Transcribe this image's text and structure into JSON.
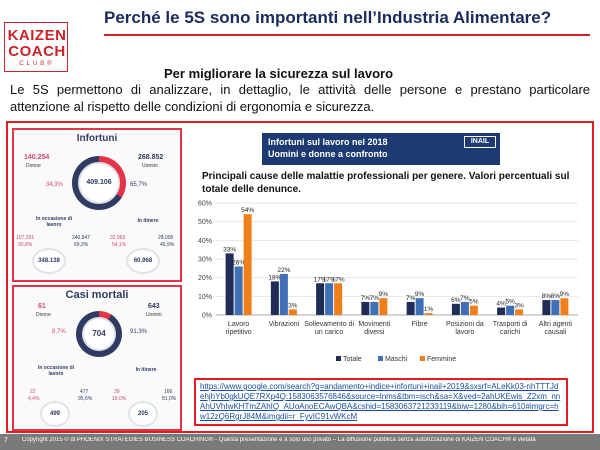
{
  "logo": {
    "line1": "KAIZEN",
    "line2": "COACH",
    "line3": "CLUB®"
  },
  "title": "Perché le 5S sono importanti nell’Industria Alimentare?",
  "subtitle": "Per migliorare la sicurezza sul lavoro",
  "intro": "Le 5S permettono di analizzare, in dettaglio, le attività delle persone e prestano particolare attenzione al rispetto delle condizioni di ergonomia e sicurezza.",
  "infortuni": {
    "title": "Infortuni",
    "donne": "140.254",
    "donne_label": "Donne",
    "donne_pct": "34,3%",
    "uomini": "268.852",
    "uomini_label": "Uomini",
    "uomini_pct": "65,7%",
    "totale": "409.106",
    "occasione_label": "In occasione di lavoro",
    "itinere_label": "In itinere",
    "occ_d": "107.291",
    "occ_d_pct": "30,8%",
    "occ_u": "240.847",
    "occ_u_pct": "69,2%",
    "iti_d": "32.963",
    "iti_d_pct": "54,1%",
    "iti_u": "28.005",
    "iti_u_pct": "45,9%",
    "occ_tot": "348.138",
    "iti_tot": "60.968"
  },
  "mortali": {
    "title": "Casi mortali",
    "donne": "61",
    "donne_label": "Donne",
    "donne_pct": "8,7%",
    "uomini": "643",
    "uomini_label": "Uomini",
    "uomini_pct": "91,3%",
    "totale": "704",
    "occasione_label": "In occasione di lavoro",
    "itinere_label": "In itinere",
    "occ_d": "22",
    "occ_d_pct": "4,4%",
    "occ_u": "477",
    "occ_u_pct": "95,6%",
    "iti_d": "39",
    "iti_d_pct": "19,0%",
    "iti_u": "166",
    "iti_u_pct": "81,0%",
    "occ_tot": "499",
    "iti_tot": "205"
  },
  "banner": {
    "line1": "Infortuni sul lavoro nel 2018",
    "line2": "Uomini e donne a confronto",
    "logo": "INAIL"
  },
  "chart_title": "Principali cause delle malattie professionali per genere. Valori percentuali sul totale delle denunce.",
  "chart_data": {
    "type": "bar",
    "categories": [
      "Lavoro ripetitivo",
      "Vibrazioni",
      "Sollevamento di un carico",
      "Movimenti diversi",
      "Fibre",
      "Posizioni da lavoro",
      "Trasporti di carichi",
      "Altri agenti causali"
    ],
    "series": [
      {
        "name": "Totale",
        "values": [
          33,
          18,
          17,
          7,
          7,
          6,
          4,
          8
        ]
      },
      {
        "name": "Maschi",
        "values": [
          26,
          22,
          17,
          7,
          9,
          7,
          5,
          8
        ]
      },
      {
        "name": "Femmine",
        "values": [
          54,
          3,
          17,
          9,
          1,
          5,
          3,
          9
        ]
      }
    ],
    "labels": [
      [
        "33%",
        "26%",
        "54%"
      ],
      [
        "18%",
        "22%",
        "3%"
      ],
      [
        "17%",
        "17%",
        "17%"
      ],
      [
        "7%",
        "7%",
        "9%"
      ],
      [
        "7%",
        "9%",
        "1%"
      ],
      [
        "6%",
        "7%",
        "5%"
      ],
      [
        "4%",
        "5%",
        "3%"
      ],
      [
        "8%",
        "8%",
        "9%"
      ]
    ],
    "yticks": [
      "0%",
      "10%",
      "20%",
      "30%",
      "40%",
      "50%",
      "60%"
    ],
    "ylim": [
      0,
      60
    ],
    "legend_position": "bottom",
    "colors": [
      "#1f2d57",
      "#3f6fb4",
      "#f07f1a"
    ]
  },
  "url": "https://www.google.com/search?q=andamento+indice+infortuni+inail+2019&sxsrf=ALeKk03-nhTTTJdehjhYb0gkUQE7RXp4Q:1583063576846&source=lnms&tbm=isch&sa=X&ved=2ahUKEwis_Z2xm_nnAhUVhIwKHTmZAhIQ_AUoAnoECAwQBA&cshid=1583063721233119&biw=1280&bih=610#imgrc=hw12zQ6RgrJ84M&imgdii=r_FyvIC91vWKcM",
  "footer": {
    "page": "7",
    "copyright": "Copyright 2015 © di PHOENIX STRATEGIES BUSINESS COACHING® - Questa presentazione è a solo uso privato – La diffusione pubblica senza autorizzazione di KAIZEN COACH® è vietata"
  }
}
